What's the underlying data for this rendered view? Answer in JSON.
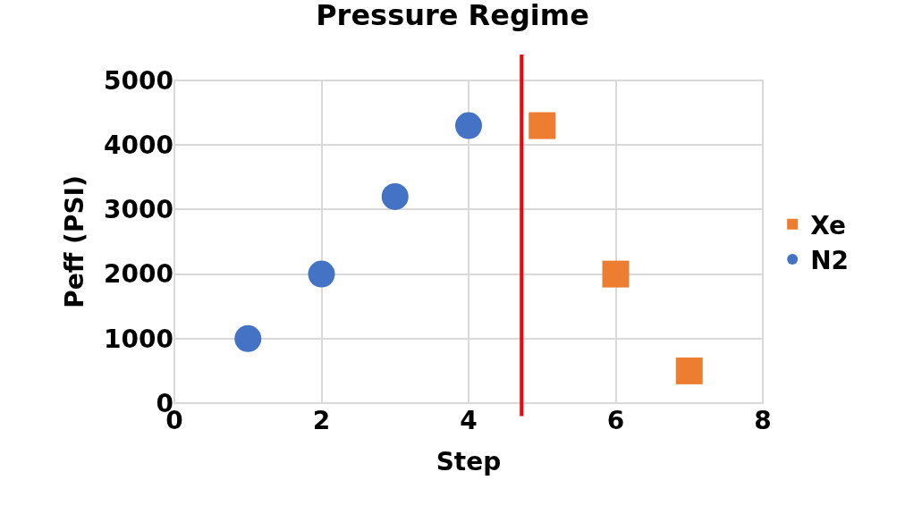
{
  "chart_data": {
    "type": "scatter",
    "title": "Pressure Regime",
    "xlabel": "Step",
    "ylabel": "Peff (PSI)",
    "series": [
      {
        "name": "Xe",
        "color": "#ed7d31",
        "marker": "square",
        "x": [
          5,
          6,
          7
        ],
        "values": [
          4300,
          2000,
          500
        ]
      },
      {
        "name": "N2",
        "color": "#4472c4",
        "marker": "circle",
        "x": [
          1,
          2,
          3,
          4
        ],
        "values": [
          1000,
          2000,
          3200,
          4300
        ]
      }
    ],
    "xlim": [
      0,
      8
    ],
    "xticks": [
      0,
      2,
      4,
      6,
      8
    ],
    "ylim": [
      0,
      5000
    ],
    "yticks": [
      0,
      1000,
      2000,
      3000,
      4000,
      5000
    ],
    "grid": true,
    "legend": "right",
    "ref_lines": [
      {
        "axis": "x",
        "value": 4.72,
        "color": "#ff0000"
      }
    ]
  }
}
